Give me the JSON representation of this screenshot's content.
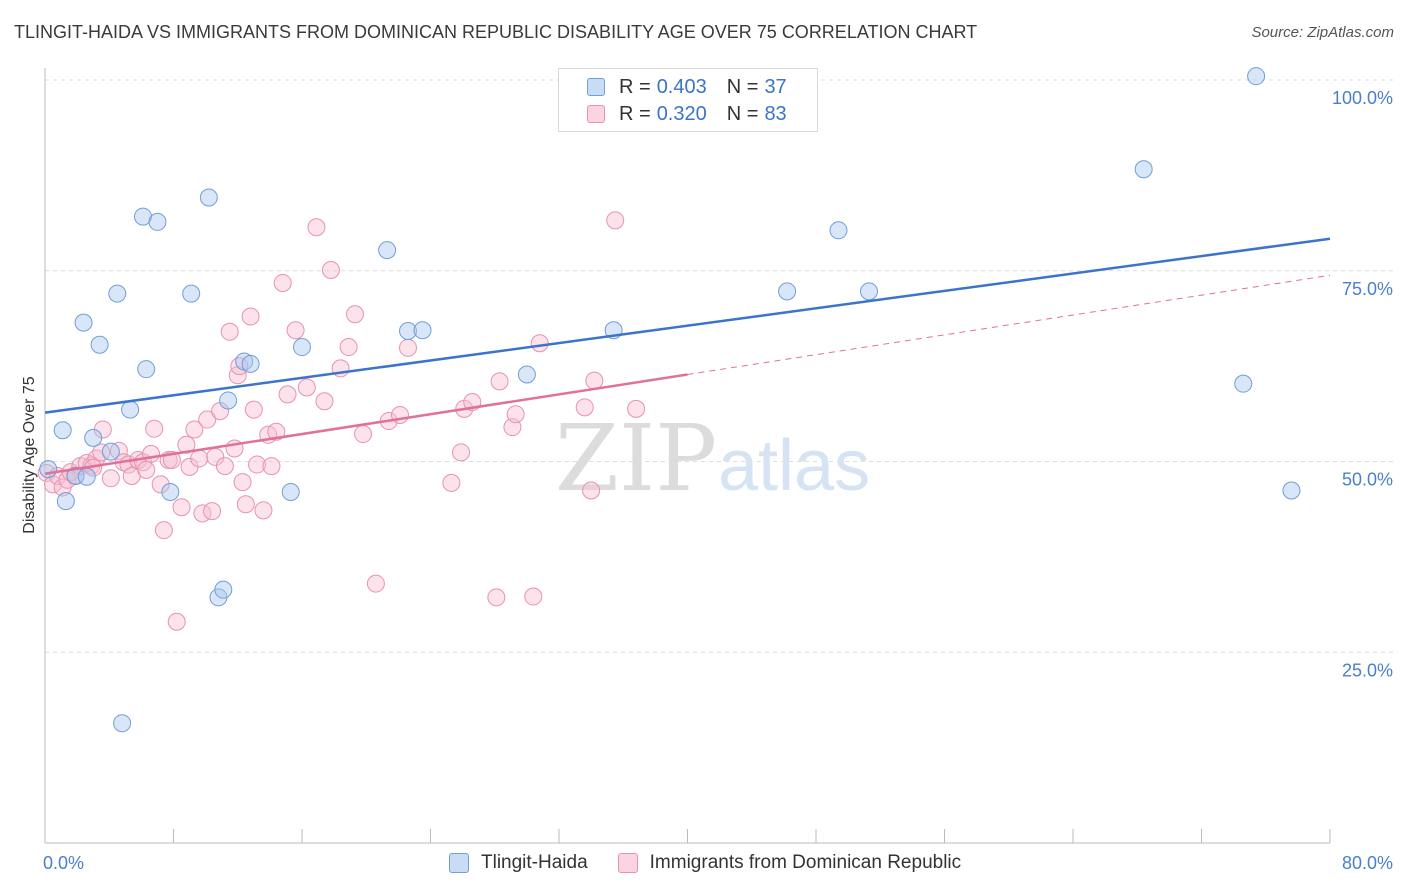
{
  "header": {
    "title": "TLINGIT-HAIDA VS IMMIGRANTS FROM DOMINICAN REPUBLIC DISABILITY AGE OVER 75 CORRELATION CHART",
    "source": "Source: ZipAtlas.com"
  },
  "watermark": {
    "part1": "ZIP",
    "part2": "atlas"
  },
  "legend": {
    "rows": [
      {
        "r_label": "R =",
        "r_value": "0.403",
        "n_label": "N =",
        "n_value": "37",
        "color": "#a9c8ee",
        "edge": "#6f9fd8"
      },
      {
        "r_label": "R =",
        "r_value": "0.320",
        "n_label": "N =",
        "n_value": "83",
        "color": "#f7bfd2",
        "edge": "#e892b0"
      }
    ]
  },
  "bottom_legend": {
    "items": [
      {
        "label": "Tlingit-Haida",
        "color": "#a9c8ee",
        "edge": "#6f9fd8"
      },
      {
        "label": "Immigrants from Dominican Republic",
        "color": "#f7bfd2",
        "edge": "#e892b0"
      }
    ]
  },
  "chart_data": {
    "type": "scatter",
    "title": "TLINGIT-HAIDA VS IMMIGRANTS FROM DOMINICAN REPUBLIC DISABILITY AGE OVER 75 CORRELATION CHART",
    "xlabel": "",
    "ylabel": "Disability Age Over 75",
    "xlim": [
      0,
      80
    ],
    "ylim": [
      0,
      100
    ],
    "x_tick_labels": [
      "0.0%",
      "80.0%"
    ],
    "y_ticks": [
      25,
      50,
      75,
      100
    ],
    "y_tick_labels": [
      "25.0%",
      "50.0%",
      "75.0%",
      "100.0%"
    ],
    "grid": true,
    "series": [
      {
        "name": "Tlingit-Haida",
        "color": "#a9c8ee",
        "edge": "#6f9fd8",
        "line_color": "#3b74c9",
        "trend": {
          "x0": 0,
          "y0": 56.4,
          "x1": 80,
          "y1": 79.2,
          "dashed_from": null
        },
        "points": [
          [
            0.2,
            49.0
          ],
          [
            1.1,
            54.1
          ],
          [
            1.3,
            44.8
          ],
          [
            1.9,
            48.1
          ],
          [
            2.4,
            68.2
          ],
          [
            3.0,
            53.1
          ],
          [
            3.4,
            65.3
          ],
          [
            4.1,
            51.3
          ],
          [
            4.5,
            72.0
          ],
          [
            5.3,
            56.8
          ],
          [
            6.1,
            82.1
          ],
          [
            6.3,
            62.1
          ],
          [
            7.0,
            81.4
          ],
          [
            7.8,
            46.0
          ],
          [
            9.1,
            72.0
          ],
          [
            10.2,
            84.6
          ],
          [
            10.8,
            32.2
          ],
          [
            11.1,
            33.2
          ],
          [
            11.4,
            58.0
          ],
          [
            12.4,
            63.1
          ],
          [
            12.8,
            62.8
          ],
          [
            15.3,
            46.0
          ],
          [
            16.0,
            65.0
          ],
          [
            21.3,
            77.7
          ],
          [
            22.6,
            67.1
          ],
          [
            23.5,
            67.2
          ],
          [
            30.0,
            61.4
          ],
          [
            35.4,
            67.2
          ],
          [
            46.2,
            72.3
          ],
          [
            49.4,
            80.3
          ],
          [
            51.3,
            72.3
          ],
          [
            68.4,
            88.3
          ],
          [
            74.6,
            60.2
          ],
          [
            75.4,
            100.5
          ],
          [
            77.6,
            46.2
          ],
          [
            4.8,
            15.7
          ],
          [
            2.6,
            48.0
          ]
        ]
      },
      {
        "name": "Immigrants from Dominican Republic",
        "color": "#f7bfd2",
        "edge": "#e892b0",
        "line_color": "#e0719a",
        "trend": {
          "x0": 0,
          "y0": 48.4,
          "x1": 80,
          "y1": 74.4,
          "solid_until": 40
        },
        "points": [
          [
            0.1,
            48.5
          ],
          [
            0.5,
            47.0
          ],
          [
            0.8,
            48.1
          ],
          [
            1.1,
            46.6
          ],
          [
            1.4,
            47.6
          ],
          [
            1.6,
            48.6
          ],
          [
            1.9,
            48.2
          ],
          [
            2.2,
            49.4
          ],
          [
            2.6,
            49.8
          ],
          [
            2.9,
            49.5
          ],
          [
            3.2,
            50.4
          ],
          [
            3.5,
            51.2
          ],
          [
            3.6,
            54.2
          ],
          [
            4.1,
            47.8
          ],
          [
            4.6,
            51.4
          ],
          [
            4.9,
            49.9
          ],
          [
            5.2,
            49.6
          ],
          [
            5.4,
            48.1
          ],
          [
            5.8,
            50.2
          ],
          [
            6.1,
            49.9
          ],
          [
            6.3,
            48.9
          ],
          [
            6.6,
            51.0
          ],
          [
            6.8,
            54.3
          ],
          [
            7.2,
            47.0
          ],
          [
            7.4,
            41.0
          ],
          [
            7.7,
            50.2
          ],
          [
            7.9,
            50.2
          ],
          [
            8.2,
            29.0
          ],
          [
            8.5,
            44.0
          ],
          [
            8.8,
            52.2
          ],
          [
            9.0,
            49.3
          ],
          [
            9.3,
            54.2
          ],
          [
            9.6,
            50.4
          ],
          [
            9.8,
            43.2
          ],
          [
            10.1,
            55.5
          ],
          [
            10.4,
            43.5
          ],
          [
            10.6,
            50.6
          ],
          [
            10.9,
            56.6
          ],
          [
            11.2,
            49.4
          ],
          [
            11.5,
            67.0
          ],
          [
            11.8,
            51.7
          ],
          [
            12.0,
            61.3
          ],
          [
            12.1,
            62.5
          ],
          [
            12.3,
            47.3
          ],
          [
            12.5,
            44.4
          ],
          [
            12.8,
            69.0
          ],
          [
            13.0,
            56.8
          ],
          [
            13.2,
            49.6
          ],
          [
            13.6,
            43.6
          ],
          [
            13.9,
            53.5
          ],
          [
            14.1,
            49.4
          ],
          [
            14.4,
            53.9
          ],
          [
            14.8,
            73.4
          ],
          [
            15.1,
            58.8
          ],
          [
            15.6,
            67.2
          ],
          [
            16.3,
            59.7
          ],
          [
            16.9,
            80.7
          ],
          [
            17.4,
            57.9
          ],
          [
            17.8,
            75.1
          ],
          [
            18.4,
            62.2
          ],
          [
            18.9,
            65.0
          ],
          [
            19.3,
            69.3
          ],
          [
            19.8,
            53.6
          ],
          [
            20.6,
            34.0
          ],
          [
            21.4,
            55.3
          ],
          [
            22.1,
            56.1
          ],
          [
            22.6,
            64.9
          ],
          [
            25.3,
            47.2
          ],
          [
            25.9,
            51.2
          ],
          [
            26.1,
            56.9
          ],
          [
            26.6,
            57.8
          ],
          [
            28.3,
            60.5
          ],
          [
            28.1,
            32.2
          ],
          [
            29.1,
            54.5
          ],
          [
            29.3,
            56.2
          ],
          [
            30.4,
            32.3
          ],
          [
            30.8,
            65.5
          ],
          [
            33.6,
            57.1
          ],
          [
            34.0,
            46.2
          ],
          [
            34.2,
            60.6
          ],
          [
            35.5,
            81.6
          ],
          [
            36.8,
            56.9
          ],
          [
            3.0,
            49.2
          ]
        ]
      }
    ]
  }
}
